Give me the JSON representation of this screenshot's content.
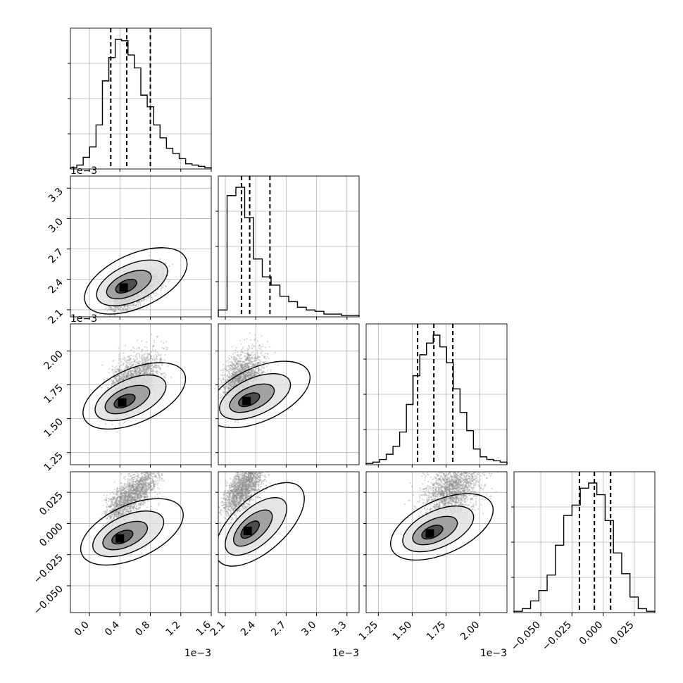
{
  "chart_data": {
    "type": "corner",
    "parameters": [
      {
        "index": 0,
        "range": [
          -0.00025,
          0.0016
        ],
        "ticks": [
          0.0,
          0.0004,
          0.0008,
          0.0012,
          0.0016
        ],
        "tick_labels": [
          "0.0",
          "0.4",
          "0.8",
          "1.2",
          "1.6"
        ],
        "multiplier": "1e−3",
        "quantiles": [
          0.00028,
          0.00049,
          0.0008
        ]
      },
      {
        "index": 1,
        "range": [
          0.00203,
          0.00342
        ],
        "ticks": [
          0.0021,
          0.0024,
          0.0027,
          0.003,
          0.0033
        ],
        "tick_labels": [
          "2.1",
          "2.4",
          "2.7",
          "3.0",
          "3.3"
        ],
        "multiplier": "1e−3",
        "quantiles": [
          0.00226,
          0.00234,
          0.00254
        ]
      },
      {
        "index": 2,
        "range": [
          0.00116,
          0.0022
        ],
        "ticks": [
          0.00125,
          0.0015,
          0.00175,
          0.002
        ],
        "tick_labels": [
          "1.25",
          "1.50",
          "1.75",
          "2.00"
        ],
        "multiplier": "1e−3",
        "quantiles": [
          0.00154,
          0.00166,
          0.0018
        ]
      },
      {
        "index": 3,
        "range": [
          -0.0715,
          0.0415
        ],
        "ticks": [
          -0.05,
          -0.025,
          0.0,
          0.025
        ],
        "tick_labels": [
          "−0.050",
          "−0.025",
          "0.000",
          "0.025"
        ],
        "multiplier": "",
        "quantiles": [
          -0.019,
          -0.007,
          0.006
        ]
      }
    ],
    "histograms": [
      [
        1,
        3,
        9,
        17,
        34,
        68,
        86,
        100,
        99,
        88,
        78,
        57,
        48,
        34,
        24,
        16,
        12,
        8,
        4,
        3,
        2,
        1
      ],
      [
        5,
        88,
        94,
        72,
        42,
        29,
        23,
        15,
        11,
        7,
        5,
        4,
        2,
        2,
        1,
        1
      ],
      [
        1,
        2,
        4,
        8,
        14,
        25,
        46,
        68,
        84,
        93,
        99,
        90,
        78,
        58,
        40,
        26,
        12,
        6,
        4,
        3,
        2
      ],
      [
        1,
        3,
        9,
        17,
        29,
        52,
        75,
        83,
        96,
        100,
        91,
        71,
        46,
        30,
        12,
        3,
        1
      ]
    ],
    "mode_2d": {
      "1_0": [
        0.00045,
        0.00232
      ],
      "2_0": [
        0.00043,
        0.00162
      ],
      "2_1": [
        0.00231,
        0.00163
      ],
      "3_0": [
        0.0004,
        -0.012
      ],
      "3_1": [
        0.00232,
        -0.006
      ],
      "3_2": [
        0.00163,
        -0.008
      ]
    },
    "grid": true,
    "xlabel": "",
    "ylabel": ""
  }
}
